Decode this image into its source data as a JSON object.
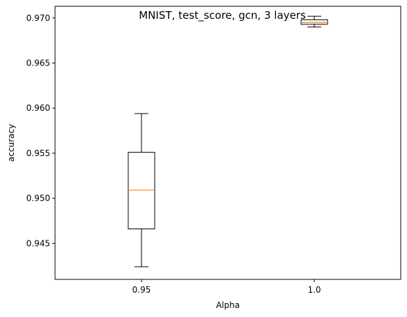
{
  "chart_data": {
    "type": "box",
    "title": "MNIST, test_score, gcn, 3 layers",
    "xlabel": "Alpha",
    "ylabel": "accuracy",
    "categories": [
      "0.95",
      "1.0"
    ],
    "ylim": [
      0.941,
      0.9713
    ],
    "yticks": [
      "0.945",
      "0.950",
      "0.955",
      "0.960",
      "0.965",
      "0.970"
    ],
    "ytick_values": [
      0.945,
      0.95,
      0.955,
      0.96,
      0.965,
      0.97
    ],
    "boxes": [
      {
        "category": "0.95",
        "whisker_low": 0.9424,
        "q1": 0.9466,
        "median": 0.9509,
        "q3": 0.9551,
        "whisker_high": 0.9594
      },
      {
        "category": "1.0",
        "whisker_low": 0.969,
        "q1": 0.9693,
        "median": 0.9695,
        "q3": 0.9698,
        "whisker_high": 0.9702
      }
    ],
    "grid": false,
    "colors": {
      "box": "#000000",
      "median": "#ff7f0e"
    }
  }
}
